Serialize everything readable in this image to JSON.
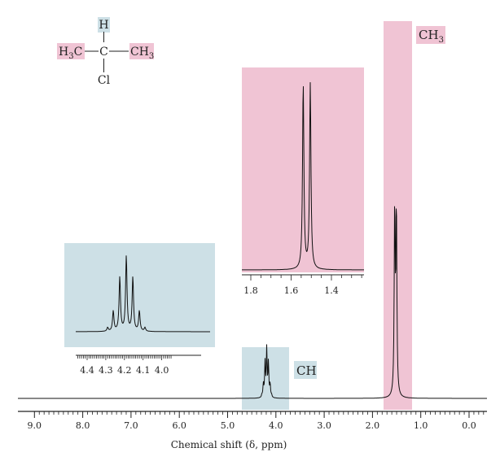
{
  "molecule": {
    "h": "H",
    "c": "C",
    "cl": "Cl",
    "left_group": {
      "base": "H",
      "sub": "3",
      "tail": "C"
    },
    "right_group": {
      "base": "CH",
      "sub": "3"
    }
  },
  "colors": {
    "pink": "#f0c4d4",
    "blue": "#cde0e6",
    "trace": "#111111",
    "axis": "#222222"
  },
  "chart_data": {
    "type": "line",
    "title": "",
    "xlabel": "Chemical shift (δ, ppm)",
    "ylabel": "",
    "x_reversed": true,
    "xlim": [
      9.0,
      0.0
    ],
    "x_ticks": [
      "9.0",
      "8.0",
      "7.0",
      "6.0",
      "5.0",
      "4.0",
      "3.0",
      "2.0",
      "1.0",
      "0.0"
    ],
    "peaks": [
      {
        "label": "CH",
        "label_sub": "",
        "shift_ppm": 4.19,
        "multiplicity": "septet",
        "relative_height": 0.13,
        "highlight": "blue"
      },
      {
        "label": "CH",
        "label_sub": "3",
        "shift_ppm": 1.52,
        "multiplicity": "doublet",
        "relative_height": 1.0,
        "highlight": "pink"
      }
    ],
    "insets": [
      {
        "name": "CH multiplet expansion",
        "x_ticks": [
          "4.4",
          "4.3",
          "4.2",
          "4.1",
          "4.0"
        ],
        "lines_ppm": [
          4.29,
          4.26,
          4.225,
          4.19,
          4.155,
          4.12,
          4.09
        ],
        "relative_heights": [
          0.05,
          0.27,
          0.72,
          1.0,
          0.72,
          0.27,
          0.05
        ]
      },
      {
        "name": "CH3 doublet expansion",
        "x_ticks": [
          "1.8",
          "1.6",
          "1.4"
        ],
        "lines_ppm": [
          1.54,
          1.505
        ],
        "relative_heights": [
          1.0,
          1.0
        ]
      }
    ]
  }
}
